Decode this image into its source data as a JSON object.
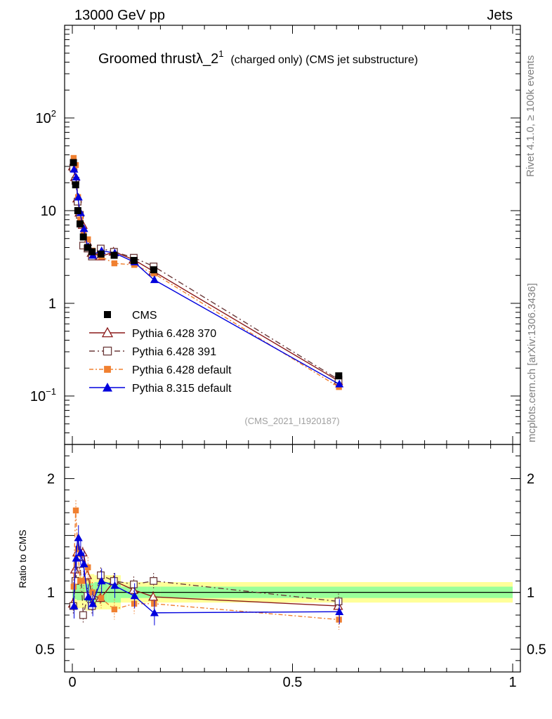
{
  "header": {
    "left": "13000 GeV pp",
    "right": "Jets"
  },
  "side_text": {
    "rivet": "Rivet 4.1.0, ≥ 100k events",
    "mcplots": "mcplots.cern.ch [arXiv:1306.3436]"
  },
  "chart_data": {
    "type": "line",
    "title": "Groomed thrustλ_2",
    "title_sup": "1",
    "subtitle": "(charged only) (CMS jet substructure)",
    "watermark": "(CMS_2021_I1920187)",
    "xlim": [
      0,
      1
    ],
    "ylim_main": [
      0.03,
      1000
    ],
    "ylim_ratio": [
      0.3,
      2.3
    ],
    "xticks": [
      0,
      0.5,
      1
    ],
    "xtick_labels": [
      "0",
      "0.5",
      "1"
    ],
    "main_ytick_labels": [
      {
        "value": 100,
        "base": "10",
        "exp": "2"
      },
      {
        "value": 10,
        "base": "10",
        "exp": ""
      },
      {
        "value": 1,
        "base": "1",
        "exp": ""
      },
      {
        "value": 0.1,
        "base": "10",
        "exp": "−1"
      }
    ],
    "ratio_yticks": [
      0.5,
      1,
      2
    ],
    "ratio_ytick_labels": [
      "0.5",
      "1",
      "2"
    ],
    "ratio_ylabel": "Ratio to CMS",
    "x": [
      0.0025,
      0.0075,
      0.0125,
      0.0175,
      0.025,
      0.035,
      0.045,
      0.065,
      0.095,
      0.14,
      0.185,
      0.605
    ],
    "bin_edges": [
      0,
      0.005,
      0.01,
      0.015,
      0.02,
      0.03,
      0.04,
      0.05,
      0.08,
      0.11,
      0.17,
      0.2,
      1.0
    ],
    "cms": [
      33.0,
      19.0,
      10.0,
      7.2,
      5.2,
      4.0,
      3.6,
      3.4,
      3.3,
      2.9,
      2.3,
      0.165
    ],
    "legend": [
      "CMS",
      "Pythia 6.428 370",
      "Pythia 6.428 391",
      "Pythia 6.428 default",
      "Pythia 8.315 default"
    ],
    "series": [
      {
        "name": "Pythia 6.428 370",
        "color": "#8b1a1a",
        "marker": "triangle-open",
        "values": [
          30.0,
          23.0,
          13.5,
          9.5,
          7.0,
          4.6,
          3.5,
          3.2,
          3.6,
          2.95,
          2.2,
          0.145
        ],
        "ratio": [
          0.9,
          1.2,
          1.35,
          1.3,
          1.35,
          1.15,
          0.97,
          0.95,
          1.1,
          1.02,
          0.96,
          0.88
        ]
      },
      {
        "name": "Pythia 6.428 391",
        "color": "#6b3a3a",
        "marker": "square-open",
        "values": [
          29.0,
          21.0,
          12.5,
          9.0,
          4.2,
          3.9,
          3.2,
          3.9,
          3.6,
          3.1,
          2.5,
          0.15
        ],
        "ratio": [
          0.88,
          1.1,
          1.25,
          1.25,
          0.8,
          0.97,
          0.88,
          1.15,
          1.1,
          1.07,
          1.1,
          0.92
        ]
      },
      {
        "name": "Pythia 6.428 default",
        "color": "#f08030",
        "marker": "square-filled",
        "values": [
          37.0,
          31.0,
          14.0,
          8.0,
          5.7,
          4.9,
          3.7,
          3.2,
          2.7,
          2.6,
          2.1,
          0.125
        ],
        "ratio": [
          1.05,
          1.72,
          1.38,
          1.1,
          1.1,
          1.22,
          1.0,
          0.95,
          0.85,
          0.9,
          0.9,
          0.76
        ]
      },
      {
        "name": "Pythia 8.315 default",
        "color": "#0000dd",
        "marker": "triangle-filled",
        "values": [
          28.0,
          23.0,
          14.0,
          9.5,
          6.4,
          4.1,
          3.3,
          3.7,
          3.5,
          2.8,
          1.8,
          0.135
        ],
        "ratio": [
          0.88,
          1.3,
          1.48,
          1.35,
          1.25,
          0.96,
          0.9,
          1.1,
          1.06,
          0.97,
          0.82,
          0.83
        ]
      }
    ],
    "band_inner": [
      0.06,
      0.06,
      0.07,
      0.07,
      0.07,
      0.08,
      0.08,
      0.09,
      0.09,
      0.05,
      0.05,
      0.05
    ],
    "band_outer": [
      0.12,
      0.12,
      0.14,
      0.14,
      0.14,
      0.16,
      0.16,
      0.15,
      0.15,
      0.09,
      0.09,
      0.09
    ]
  }
}
